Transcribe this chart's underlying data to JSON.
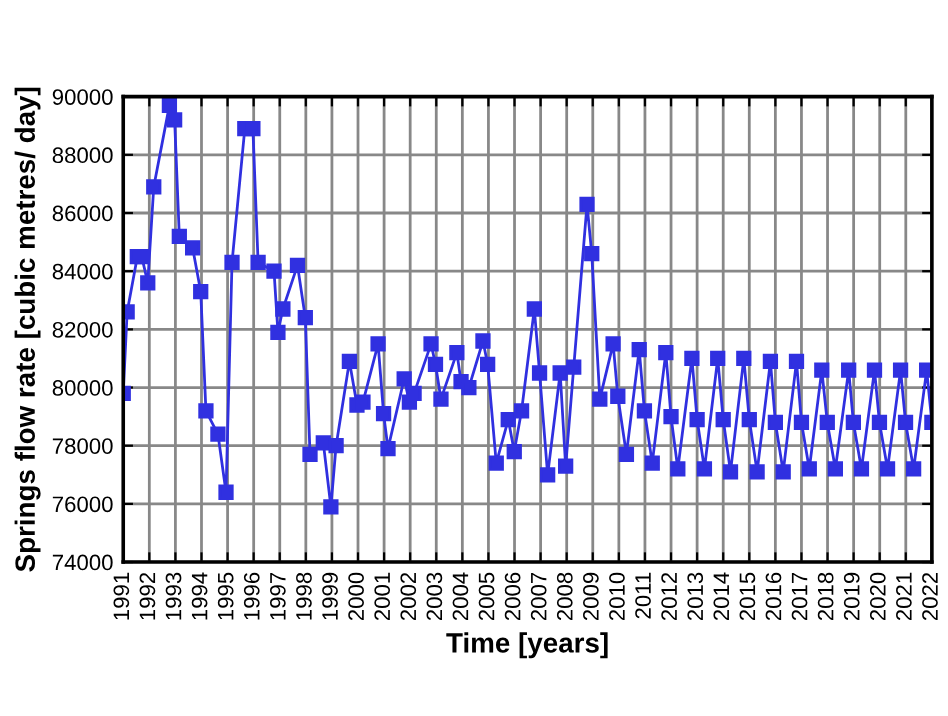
{
  "chart_data": {
    "type": "line",
    "xlabel": "Time [years]",
    "ylabel": "Springs flow rate [cubic metres/ day]",
    "xlim": [
      1991,
      2022
    ],
    "xticks": [
      1991,
      1992,
      1993,
      1994,
      1995,
      1996,
      1997,
      1998,
      1999,
      2000,
      2001,
      2002,
      2003,
      2004,
      2005,
      2006,
      2007,
      2008,
      2009,
      2010,
      2011,
      2012,
      2013,
      2014,
      2015,
      2016,
      2017,
      2018,
      2019,
      2020,
      2021,
      2022
    ],
    "ylim": [
      74000,
      90000
    ],
    "yticks": [
      74000,
      76000,
      78000,
      80000,
      82000,
      84000,
      86000,
      88000,
      90000
    ],
    "grid": true,
    "marker": "square",
    "line_style": "solid",
    "series": [
      {
        "color": "#3030e0",
        "x": [
          1991.0,
          1991.15,
          1991.54,
          1991.71,
          1991.94,
          1992.17,
          1992.77,
          1992.97,
          1993.15,
          1993.66,
          1993.97,
          1994.17,
          1994.63,
          1994.94,
          1995.17,
          1995.66,
          1995.97,
          1996.17,
          1996.78,
          1996.93,
          1997.12,
          1997.68,
          1997.98,
          1998.16,
          1998.67,
          1998.96,
          1999.16,
          1999.67,
          1999.96,
          2000.19,
          2000.77,
          2000.98,
          2001.15,
          2001.77,
          2001.97,
          2002.15,
          2002.8,
          2002.97,
          2003.18,
          2003.79,
          2003.95,
          2004.25,
          2004.79,
          2004.97,
          2005.3,
          2005.76,
          2005.99,
          2006.27,
          2006.76,
          2006.96,
          2007.27,
          2007.75,
          2007.96,
          2008.27,
          2008.78,
          2008.96,
          2009.27,
          2009.78,
          2009.96,
          2010.29,
          2010.78,
          2010.98,
          2011.28,
          2011.8,
          2012.0,
          2012.26,
          2012.8,
          2013.0,
          2013.28,
          2013.79,
          2014.0,
          2014.28,
          2014.79,
          2015.0,
          2015.3,
          2015.81,
          2016.0,
          2016.3,
          2016.81,
          2017.0,
          2017.3,
          2017.78,
          2017.99,
          2018.3,
          2018.81,
          2018.99,
          2019.3,
          2019.8,
          2019.99,
          2020.3,
          2020.8,
          2020.99,
          2021.3,
          2021.8,
          2022.0
        ],
        "values": [
          79800,
          82600,
          84500,
          84500,
          83600,
          86900,
          89700,
          89200,
          85200,
          84800,
          83300,
          79200,
          78400,
          76400,
          84300,
          88900,
          88900,
          84300,
          84000,
          81900,
          82700,
          84200,
          82400,
          77700,
          78100,
          75900,
          78000,
          80900,
          79400,
          79500,
          81500,
          79100,
          77900,
          80300,
          79500,
          79800,
          81500,
          80800,
          79600,
          81200,
          80200,
          80000,
          81600,
          80800,
          77400,
          78900,
          77800,
          79200,
          82700,
          80500,
          77000,
          80500,
          77300,
          80700,
          86300,
          84600,
          79600,
          81500,
          79700,
          77700,
          81300,
          79200,
          77400,
          81200,
          79000,
          77200,
          81000,
          78900,
          77200,
          81000,
          78900,
          77100,
          81000,
          78900,
          77100,
          80900,
          78800,
          77100,
          80900,
          78800,
          77200,
          80600,
          78800,
          77200,
          80600,
          78800,
          77200,
          80600,
          78800,
          77200,
          80600,
          78800,
          77200,
          80600,
          78800
        ]
      }
    ]
  }
}
